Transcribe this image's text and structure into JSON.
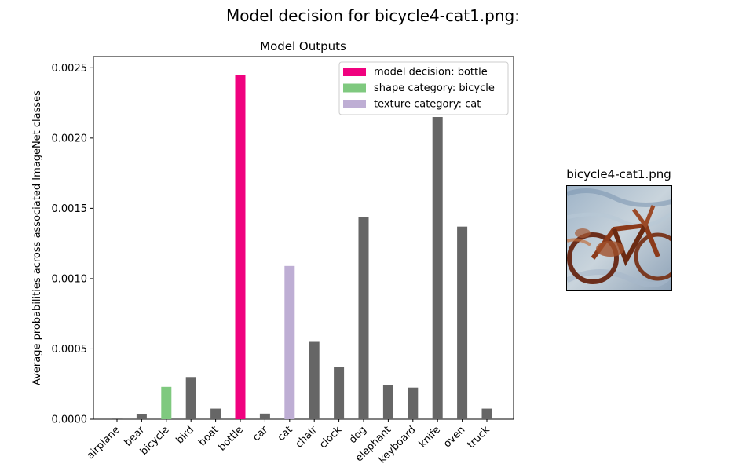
{
  "figure_title": "Model decision for bicycle4-cat1.png:",
  "image_panel": {
    "title": "bicycle4-cat1.png"
  },
  "chart_data": {
    "type": "bar",
    "title": "Model Outputs",
    "xlabel": "",
    "ylabel": "Average probabilities across associated ImageNet classes",
    "ylim": [
      0,
      0.00258
    ],
    "yticks": [
      "0.0000",
      "0.0005",
      "0.0010",
      "0.0015",
      "0.0020",
      "0.0025"
    ],
    "ytick_values": [
      0,
      0.0005,
      0.001,
      0.0015,
      0.002,
      0.0025
    ],
    "categories": [
      "airplane",
      "bear",
      "bicycle",
      "bird",
      "boat",
      "bottle",
      "car",
      "cat",
      "chair",
      "clock",
      "dog",
      "elephant",
      "keyboard",
      "knife",
      "oven",
      "truck"
    ],
    "values": [
      5e-06,
      3.5e-05,
      0.00023,
      0.0003,
      7.5e-05,
      0.00245,
      4e-05,
      0.00109,
      0.00055,
      0.00037,
      0.00144,
      0.000245,
      0.000225,
      0.00215,
      0.00137,
      7.5e-05
    ],
    "bar_colors": [
      "#666666",
      "#666666",
      "#7fc97f",
      "#666666",
      "#666666",
      "#f0027f",
      "#666666",
      "#beaed4",
      "#666666",
      "#666666",
      "#666666",
      "#666666",
      "#666666",
      "#666666",
      "#666666",
      "#666666"
    ],
    "legend": {
      "placement": "top-right",
      "entries": [
        {
          "label": "model decision: bottle",
          "color": "#f0027f"
        },
        {
          "label": "shape category: bicycle",
          "color": "#7fc97f"
        },
        {
          "label": "texture category: cat",
          "color": "#beaed4"
        }
      ]
    },
    "grid": false
  }
}
